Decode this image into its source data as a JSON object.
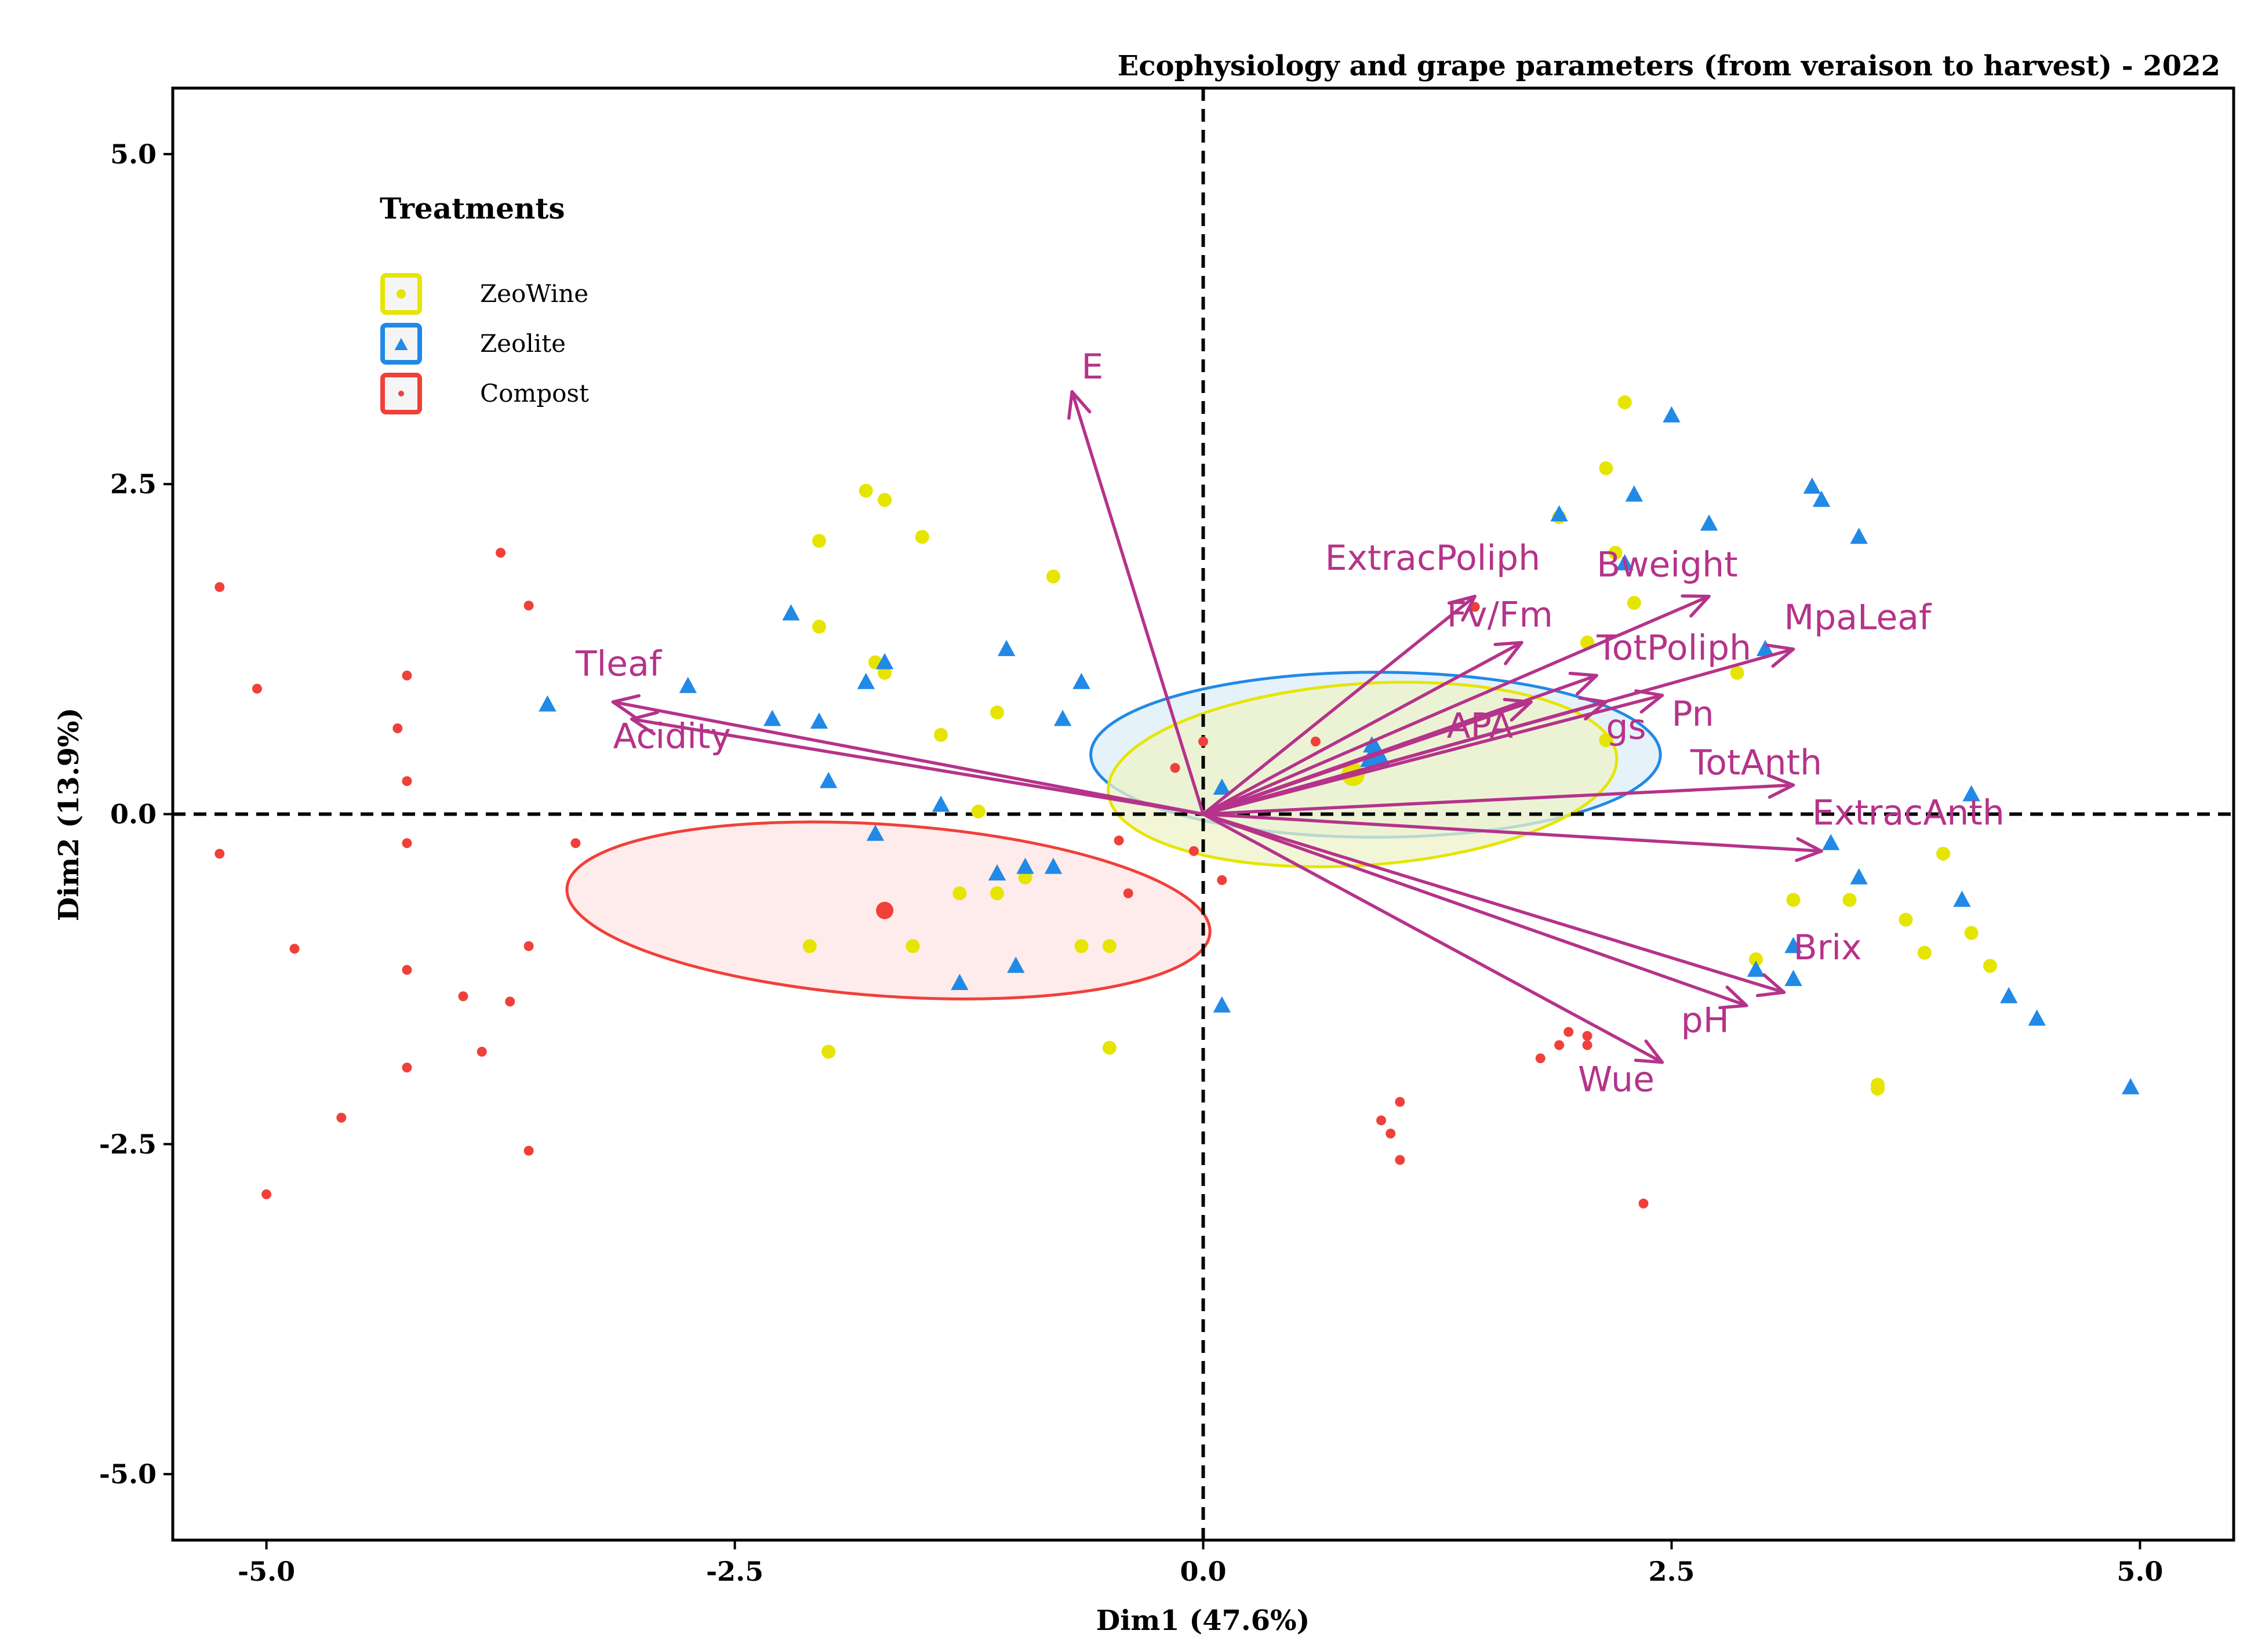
{
  "chart_data": {
    "type": "scatter",
    "title": "Ecophysiology and grape parameters (from veraison to harvest) - 2022",
    "xlabel": "Dim1 (47.6%)",
    "ylabel": "Dim2 (13.9%)",
    "xlim": [
      -5.5,
      5.5
    ],
    "ylim": [
      -5.5,
      5.5
    ],
    "xticks": [
      -5.0,
      -2.5,
      0.0,
      2.5,
      5.0
    ],
    "yticks": [
      -5.0,
      -2.5,
      0.0,
      2.5,
      5.0
    ],
    "xtick_labels": [
      "-5.0",
      "-2.5",
      "0.0",
      "2.5",
      "5.0"
    ],
    "ytick_labels": [
      "-5.0",
      "-2.5",
      "0.0",
      "2.5",
      "5.0"
    ],
    "legend": {
      "title": "Treatments",
      "position": "top-left",
      "entries": [
        {
          "name": "ZeoWine",
          "color": "#e5e500",
          "marker": "circle"
        },
        {
          "name": "Zeolite",
          "color": "#2189e6",
          "marker": "triangle"
        },
        {
          "name": "Compost",
          "color": "#f0403a",
          "marker": "circle"
        }
      ]
    },
    "colors": {
      "ZeoWine": "#e5e500",
      "Zeolite": "#2189e6",
      "Compost": "#f0403a",
      "arrow": "#b5338a",
      "ellipse_ZeoWine_fill": "#eef3c8",
      "ellipse_Zeolite_fill": "#dcedf7",
      "ellipse_Compost_fill": "#fde4e4"
    },
    "series": [
      {
        "name": "ZeoWine",
        "points": [
          [
            2.25,
            3.12
          ],
          [
            2.15,
            2.62
          ],
          [
            1.9,
            2.25
          ],
          [
            2.2,
            1.98
          ],
          [
            2.3,
            1.6
          ],
          [
            2.05,
            1.3
          ],
          [
            2.85,
            1.07
          ],
          [
            2.15,
            0.56
          ],
          [
            3.15,
            -0.65
          ],
          [
            3.45,
            -0.65
          ],
          [
            3.75,
            -0.8
          ],
          [
            3.95,
            -0.3
          ],
          [
            4.1,
            -0.9
          ],
          [
            4.2,
            -1.15
          ],
          [
            3.85,
            -1.05
          ],
          [
            3.6,
            -2.05
          ],
          [
            3.6,
            -2.08
          ],
          [
            2.95,
            -1.1
          ],
          [
            -1.8,
            2.45
          ],
          [
            -1.7,
            2.38
          ],
          [
            -2.05,
            2.07
          ],
          [
            -1.5,
            2.1
          ],
          [
            -0.8,
            1.8
          ],
          [
            -2.05,
            1.42
          ],
          [
            -1.75,
            1.15
          ],
          [
            -1.7,
            1.07
          ],
          [
            -1.1,
            0.77
          ],
          [
            -1.4,
            0.6
          ],
          [
            -1.1,
            -0.6
          ],
          [
            -1.3,
            -0.6
          ],
          [
            -0.95,
            -0.48
          ],
          [
            -2.1,
            -1.0
          ],
          [
            -1.55,
            -1.0
          ],
          [
            -0.65,
            -1.0
          ],
          [
            -0.5,
            -1.0
          ],
          [
            -2.0,
            -1.8
          ],
          [
            -0.5,
            -1.77
          ],
          [
            -1.2,
            0.02
          ]
        ],
        "mean": [
          0.8,
          0.3
        ]
      },
      {
        "name": "Zeolite",
        "points": [
          [
            2.5,
            3.02
          ],
          [
            2.3,
            2.42
          ],
          [
            2.7,
            2.2
          ],
          [
            3.25,
            2.48
          ],
          [
            3.3,
            2.38
          ],
          [
            3.5,
            2.1
          ],
          [
            1.9,
            2.27
          ],
          [
            2.25,
            1.9
          ],
          [
            3.0,
            1.25
          ],
          [
            -2.2,
            1.52
          ],
          [
            -1.05,
            1.25
          ],
          [
            -1.7,
            1.15
          ],
          [
            -1.8,
            1.0
          ],
          [
            -0.65,
            1.0
          ],
          [
            -2.75,
            0.97
          ],
          [
            -3.5,
            0.83
          ],
          [
            -2.3,
            0.72
          ],
          [
            -2.05,
            0.7
          ],
          [
            -0.75,
            0.72
          ],
          [
            -2.0,
            0.25
          ],
          [
            -1.4,
            0.07
          ],
          [
            -1.75,
            -0.15
          ],
          [
            -0.95,
            -0.4
          ],
          [
            -1.1,
            -0.45
          ],
          [
            -0.8,
            -0.4
          ],
          [
            -1.3,
            -1.28
          ],
          [
            -1.0,
            -1.15
          ],
          [
            0.1,
            -1.45
          ],
          [
            0.1,
            0.2
          ],
          [
            4.1,
            0.15
          ],
          [
            3.35,
            -0.22
          ],
          [
            3.5,
            -0.48
          ],
          [
            4.05,
            -0.65
          ],
          [
            3.15,
            -1.0
          ],
          [
            3.15,
            -1.25
          ],
          [
            2.95,
            -1.18
          ],
          [
            4.3,
            -1.38
          ],
          [
            4.45,
            -1.55
          ],
          [
            4.95,
            -2.07
          ],
          [
            0.9,
            0.52
          ],
          [
            0.9,
            0.45
          ]
        ],
        "mean": [
          0.92,
          0.45
        ]
      },
      {
        "name": "Compost",
        "points": [
          [
            -5.25,
            1.72
          ],
          [
            -5.05,
            0.95
          ],
          [
            -5.25,
            -0.3
          ],
          [
            -4.85,
            -1.02
          ],
          [
            -4.25,
            1.05
          ],
          [
            -4.3,
            0.65
          ],
          [
            -4.25,
            0.25
          ],
          [
            -4.25,
            -0.22
          ],
          [
            -4.25,
            -1.18
          ],
          [
            -4.25,
            -1.92
          ],
          [
            -4.6,
            -2.3
          ],
          [
            -5.0,
            -2.88
          ],
          [
            -3.75,
            1.98
          ],
          [
            -3.6,
            1.58
          ],
          [
            -3.35,
            -0.22
          ],
          [
            -3.6,
            -1.0
          ],
          [
            -3.7,
            -1.42
          ],
          [
            -3.95,
            -1.38
          ],
          [
            -3.85,
            -1.8
          ],
          [
            -3.6,
            -2.55
          ],
          [
            0.0,
            0.55
          ],
          [
            -0.15,
            0.35
          ],
          [
            -0.45,
            -0.2
          ],
          [
            -0.05,
            -0.28
          ],
          [
            0.1,
            -0.5
          ],
          [
            -0.4,
            -0.6
          ],
          [
            0.6,
            0.55
          ],
          [
            1.45,
            1.57
          ],
          [
            1.95,
            -1.65
          ],
          [
            1.9,
            -1.75
          ],
          [
            1.8,
            -1.85
          ],
          [
            2.05,
            -1.68
          ],
          [
            2.05,
            -1.75
          ],
          [
            1.05,
            -2.18
          ],
          [
            0.95,
            -2.32
          ],
          [
            1.0,
            -2.42
          ],
          [
            1.05,
            -2.62
          ],
          [
            2.35,
            -2.95
          ]
        ],
        "mean": [
          -1.7,
          -0.73
        ]
      }
    ],
    "ellipses": [
      {
        "group": "Zeolite",
        "center": [
          0.92,
          0.45
        ],
        "rx": 1.9,
        "ry": 0.5,
        "rotation_deg": 0
      },
      {
        "group": "ZeoWine",
        "center": [
          0.85,
          0.3
        ],
        "rx": 1.7,
        "ry": 0.55,
        "rotation_deg": -4
      },
      {
        "group": "Compost",
        "center": [
          -1.68,
          -0.73
        ],
        "rx": 2.15,
        "ry": 0.52,
        "rotation_deg": 4
      }
    ],
    "variables": [
      {
        "name": "E",
        "x": -0.7,
        "y": 3.2
      },
      {
        "name": "Tleaf",
        "x": -3.15,
        "y": 0.85
      },
      {
        "name": "Acidity",
        "x": -3.05,
        "y": 0.72
      },
      {
        "name": "ExtracPoliph",
        "x": 1.45,
        "y": 1.65
      },
      {
        "name": "Fv/Fm",
        "x": 1.7,
        "y": 1.3
      },
      {
        "name": "Bweight",
        "x": 2.7,
        "y": 1.65
      },
      {
        "name": "MpaLeaf",
        "x": 3.15,
        "y": 1.25
      },
      {
        "name": "TotPoliph",
        "x": 2.1,
        "y": 1.05
      },
      {
        "name": "APA",
        "x": 1.75,
        "y": 0.85
      },
      {
        "name": "gs",
        "x": 2.15,
        "y": 0.85
      },
      {
        "name": "Pn",
        "x": 2.45,
        "y": 0.9
      },
      {
        "name": "TotAnth",
        "x": 3.15,
        "y": 0.22
      },
      {
        "name": "ExtracAnth",
        "x": 3.3,
        "y": -0.28
      },
      {
        "name": "Brix",
        "x": 3.1,
        "y": -1.35
      },
      {
        "name": "pH",
        "x": 2.9,
        "y": -1.45
      },
      {
        "name": "Wue",
        "x": 2.45,
        "y": -1.88
      }
    ],
    "variable_labels": [
      {
        "name": "E",
        "x": -0.65,
        "y": 3.3
      },
      {
        "name": "Tleaf",
        "x": -3.35,
        "y": 1.05
      },
      {
        "name": "Acidity",
        "x": -3.15,
        "y": 0.5
      },
      {
        "name": "ExtracPoliph",
        "x": 0.65,
        "y": 1.85
      },
      {
        "name": "Fv/Fm",
        "x": 1.3,
        "y": 1.42
      },
      {
        "name": "Bweight",
        "x": 2.1,
        "y": 1.8
      },
      {
        "name": "MpaLeaf",
        "x": 3.1,
        "y": 1.4
      },
      {
        "name": "TotPoliph",
        "x": 2.1,
        "y": 1.17
      },
      {
        "name": "APA",
        "x": 1.3,
        "y": 0.58
      },
      {
        "name": "gs",
        "x": 2.15,
        "y": 0.57
      },
      {
        "name": "Pn",
        "x": 2.5,
        "y": 0.67
      },
      {
        "name": "TotAnth",
        "x": 2.6,
        "y": 0.3
      },
      {
        "name": "ExtracAnth",
        "x": 3.25,
        "y": -0.08
      },
      {
        "name": "Brix",
        "x": 3.15,
        "y": -1.1
      },
      {
        "name": "pH",
        "x": 2.55,
        "y": -1.65
      },
      {
        "name": "Wue",
        "x": 2.0,
        "y": -2.1
      }
    ]
  }
}
